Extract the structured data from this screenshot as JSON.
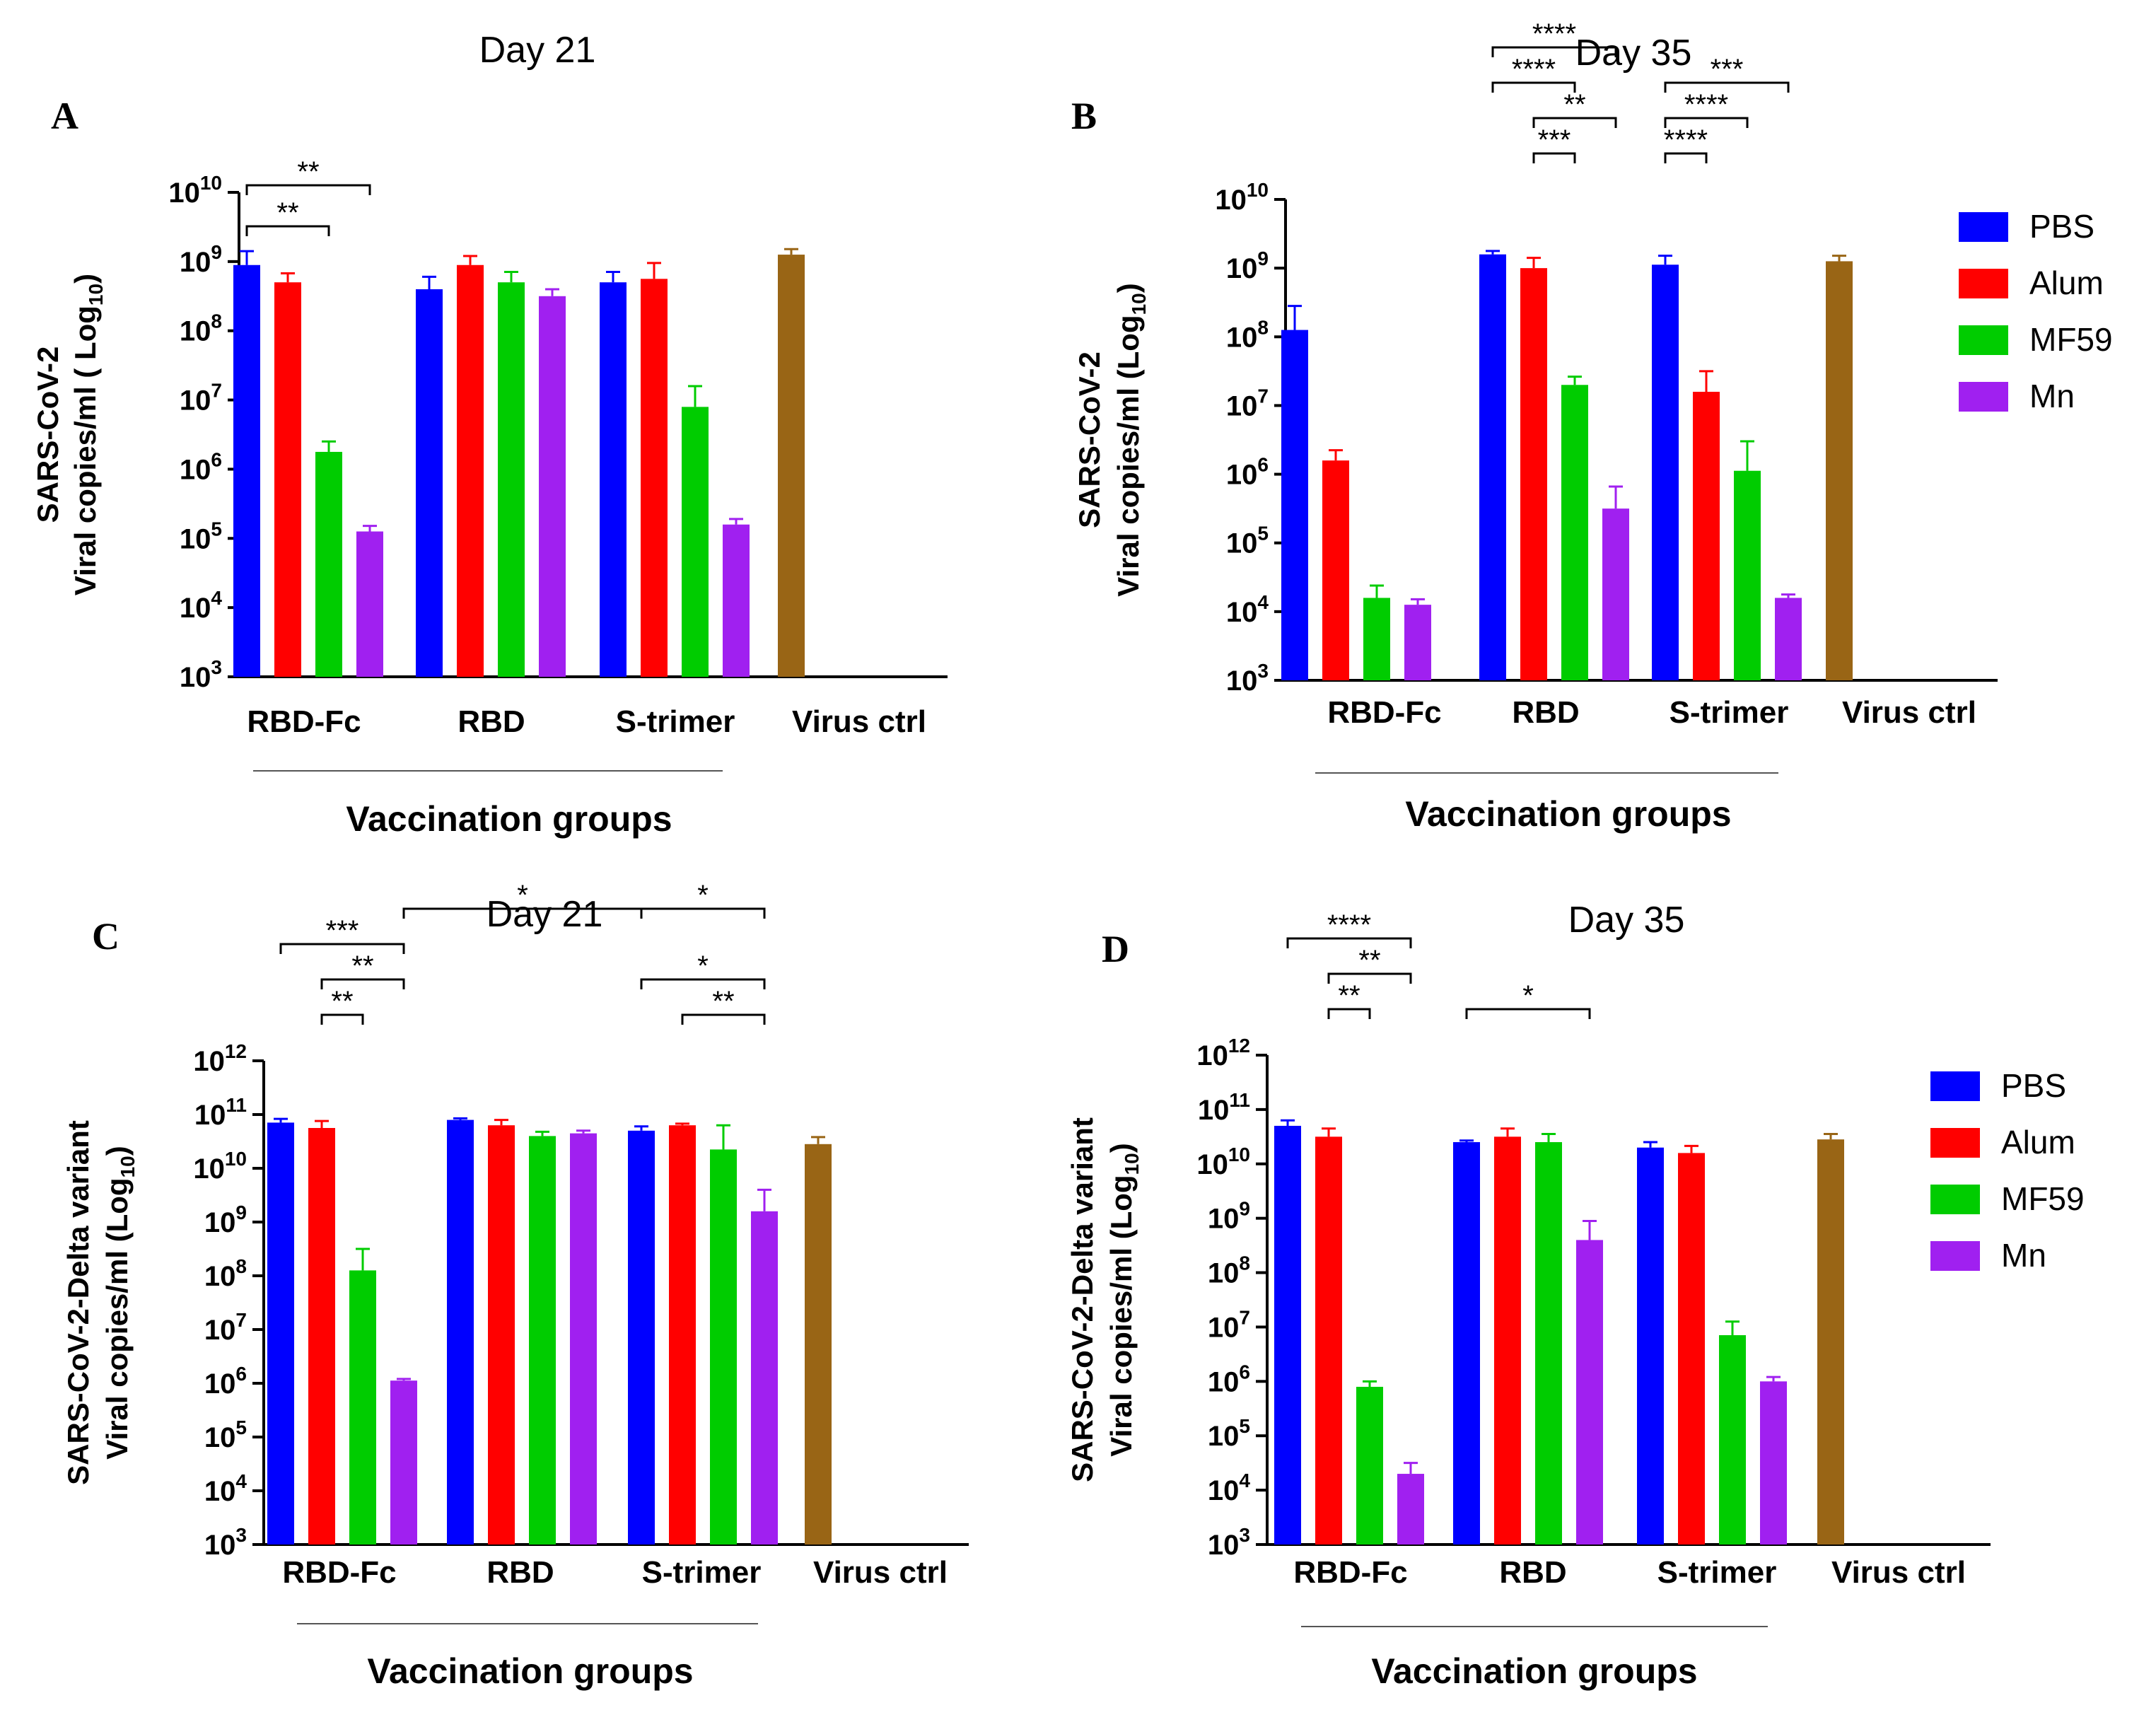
{
  "legend": [
    {
      "label": "PBS",
      "color": "#0000ff"
    },
    {
      "label": "Alum",
      "color": "#ff0000"
    },
    {
      "label": "MF59",
      "color": "#00cc00"
    },
    {
      "label": "Mn",
      "color": "#a020f0"
    }
  ],
  "virus_ctrl_color": "#996515",
  "chart_data": [
    {
      "type": "bar",
      "panel": "A",
      "title": "Day 21",
      "ylabel_line1": "SARS-CoV-2",
      "ylabel_line2": "Viral copies/ml ( Log",
      "ylabel_sub": "10",
      "ylabel_end": ")",
      "xlabel": "Vaccination groups",
      "yscale": "log10",
      "ylim": [
        3,
        10
      ],
      "ytick_exponents": [
        3,
        4,
        5,
        6,
        7,
        8,
        9,
        10
      ],
      "categories": [
        "RBD-Fc",
        "RBD",
        "S-trimer",
        "Virus ctrl"
      ],
      "series": [
        {
          "name": "PBS",
          "log_values": [
            8.95,
            8.6,
            8.7,
            null
          ],
          "log_errors": [
            9.15,
            8.78,
            8.85,
            null
          ]
        },
        {
          "name": "Alum",
          "log_values": [
            8.7,
            8.95,
            8.75,
            null
          ],
          "log_errors": [
            8.83,
            9.08,
            8.98,
            null
          ]
        },
        {
          "name": "MF59",
          "log_values": [
            6.25,
            8.7,
            6.9,
            null
          ],
          "log_errors": [
            6.4,
            8.85,
            7.2,
            null
          ]
        },
        {
          "name": "Mn",
          "log_values": [
            5.1,
            8.5,
            5.2,
            null
          ],
          "log_errors": [
            5.18,
            8.6,
            5.28,
            null
          ]
        }
      ],
      "virus_ctrl": {
        "log_value": 9.1,
        "log_error": 9.18
      },
      "significance": [
        {
          "label": "**",
          "from": "RBD-Fc|PBS",
          "to": "RBD-Fc|Mn",
          "level": 0
        },
        {
          "label": "**",
          "from": "RBD-Fc|PBS",
          "to": "RBD-Fc|MF59",
          "level": 1
        }
      ]
    },
    {
      "type": "bar",
      "panel": "B",
      "title": "Day 35",
      "ylabel_line1": "SARS-CoV-2",
      "ylabel_line2": "Viral copies/ml (Log",
      "ylabel_sub": "10",
      "ylabel_end": ")",
      "xlabel": "Vaccination groups",
      "yscale": "log10",
      "ylim": [
        3,
        10
      ],
      "ytick_exponents": [
        3,
        4,
        5,
        6,
        7,
        8,
        9,
        10
      ],
      "categories": [
        "RBD-Fc",
        "RBD",
        "S-trimer",
        "Virus ctrl"
      ],
      "series": [
        {
          "name": "PBS",
          "log_values": [
            8.1,
            9.2,
            9.05,
            null
          ],
          "log_errors": [
            8.45,
            9.25,
            9.18,
            null
          ]
        },
        {
          "name": "Alum",
          "log_values": [
            6.2,
            9.0,
            7.2,
            null
          ],
          "log_errors": [
            6.35,
            9.15,
            7.5,
            null
          ]
        },
        {
          "name": "MF59",
          "log_values": [
            4.2,
            7.3,
            6.05,
            null
          ],
          "log_errors": [
            4.38,
            7.42,
            6.48,
            null
          ]
        },
        {
          "name": "Mn",
          "log_values": [
            4.1,
            5.5,
            4.2,
            null
          ],
          "log_errors": [
            4.18,
            5.82,
            4.25,
            null
          ]
        }
      ],
      "virus_ctrl": {
        "log_value": 9.1,
        "log_error": 9.18
      },
      "significance": [
        {
          "label": "****",
          "from": "RBD|PBS",
          "to": "RBD|Mn",
          "level": 0
        },
        {
          "label": "****",
          "from": "RBD|PBS",
          "to": "RBD|MF59",
          "level": 1
        },
        {
          "label": "**",
          "from": "RBD|Alum",
          "to": "RBD|Mn",
          "level": 2
        },
        {
          "label": "***",
          "from": "RBD|Alum",
          "to": "RBD|MF59",
          "level": 3
        },
        {
          "label": "***",
          "from": "S-trimer|PBS",
          "to": "S-trimer|Mn",
          "level": 1
        },
        {
          "label": "****",
          "from": "S-trimer|PBS",
          "to": "S-trimer|MF59",
          "level": 2
        },
        {
          "label": "****",
          "from": "S-trimer|PBS",
          "to": "S-trimer|Alum",
          "level": 3
        }
      ]
    },
    {
      "type": "bar",
      "panel": "C",
      "title": "Day 21",
      "ylabel_line1": "SARS-CoV-2-Delta variant",
      "ylabel_line2": "Viral copies/ml (Log",
      "ylabel_sub": "10",
      "ylabel_end": ")",
      "xlabel": "Vaccination groups",
      "yscale": "log10",
      "ylim": [
        3,
        12
      ],
      "ytick_exponents": [
        3,
        4,
        5,
        6,
        7,
        8,
        9,
        10,
        11,
        12
      ],
      "categories": [
        "RBD-Fc",
        "RBD",
        "S-trimer",
        "Virus ctrl"
      ],
      "series": [
        {
          "name": "PBS",
          "log_values": [
            10.85,
            10.9,
            10.7,
            null
          ],
          "log_errors": [
            10.92,
            10.93,
            10.78,
            null
          ]
        },
        {
          "name": "Alum",
          "log_values": [
            10.75,
            10.8,
            10.8,
            null
          ],
          "log_errors": [
            10.88,
            10.9,
            10.83,
            null
          ]
        },
        {
          "name": "MF59",
          "log_values": [
            8.1,
            10.6,
            10.35,
            null
          ],
          "log_errors": [
            8.5,
            10.68,
            10.8,
            null
          ]
        },
        {
          "name": "Mn",
          "log_values": [
            6.05,
            10.65,
            9.2,
            null
          ],
          "log_errors": [
            6.08,
            10.7,
            9.6,
            null
          ]
        }
      ],
      "virus_ctrl": {
        "log_value": 10.45,
        "log_error": 10.58
      },
      "significance": [
        {
          "label": "***",
          "from": "RBD-Fc|PBS",
          "to": "RBD-Fc|Mn",
          "level": 1
        },
        {
          "label": "**",
          "from": "RBD-Fc|Alum",
          "to": "RBD-Fc|Mn",
          "level": 2
        },
        {
          "label": "**",
          "from": "RBD-Fc|Alum",
          "to": "RBD-Fc|MF59",
          "level": 3
        },
        {
          "label": "*",
          "from": "RBD-Fc|Mn",
          "to": "S-trimer|PBS",
          "level": 0
        },
        {
          "label": "*",
          "from": "S-trimer|PBS",
          "to": "S-trimer|Mn",
          "level": 0
        },
        {
          "label": "*",
          "from": "S-trimer|PBS",
          "to": "S-trimer|Mn",
          "level": 2
        },
        {
          "label": "**",
          "from": "S-trimer|Alum",
          "to": "S-trimer|Mn",
          "level": 3
        }
      ]
    },
    {
      "type": "bar",
      "panel": "D",
      "title": "Day 35",
      "ylabel_line1": "SARS-CoV-2-Delta variant",
      "ylabel_line2": "Viral copies/ml (Log",
      "ylabel_sub": "10",
      "ylabel_end": ")",
      "xlabel": "Vaccination groups",
      "yscale": "log10",
      "ylim": [
        3,
        12
      ],
      "ytick_exponents": [
        3,
        4,
        5,
        6,
        7,
        8,
        9,
        10,
        11,
        12
      ],
      "categories": [
        "RBD-Fc",
        "RBD",
        "S-trimer",
        "Virus ctrl"
      ],
      "series": [
        {
          "name": "PBS",
          "log_values": [
            10.7,
            10.4,
            10.3,
            null
          ],
          "log_errors": [
            10.8,
            10.43,
            10.4,
            null
          ]
        },
        {
          "name": "Alum",
          "log_values": [
            10.5,
            10.5,
            10.2,
            null
          ],
          "log_errors": [
            10.65,
            10.65,
            10.33,
            null
          ]
        },
        {
          "name": "MF59",
          "log_values": [
            5.9,
            10.4,
            6.85,
            null
          ],
          "log_errors": [
            6.0,
            10.55,
            7.1,
            null
          ]
        },
        {
          "name": "Mn",
          "log_values": [
            4.3,
            8.6,
            6.0,
            null
          ],
          "log_errors": [
            4.5,
            8.95,
            6.08,
            null
          ]
        }
      ],
      "virus_ctrl": {
        "log_value": 10.45,
        "log_error": 10.55
      },
      "significance": [
        {
          "label": "****",
          "from": "RBD-Fc|PBS",
          "to": "RBD-Fc|Mn",
          "level": 1
        },
        {
          "label": "**",
          "from": "RBD-Fc|Alum",
          "to": "RBD-Fc|Mn",
          "level": 2
        },
        {
          "label": "**",
          "from": "RBD-Fc|Alum",
          "to": "RBD-Fc|MF59",
          "level": 3
        },
        {
          "label": "*",
          "from": "RBD|PBS",
          "to": "RBD|Mn",
          "level": 3
        }
      ]
    }
  ]
}
